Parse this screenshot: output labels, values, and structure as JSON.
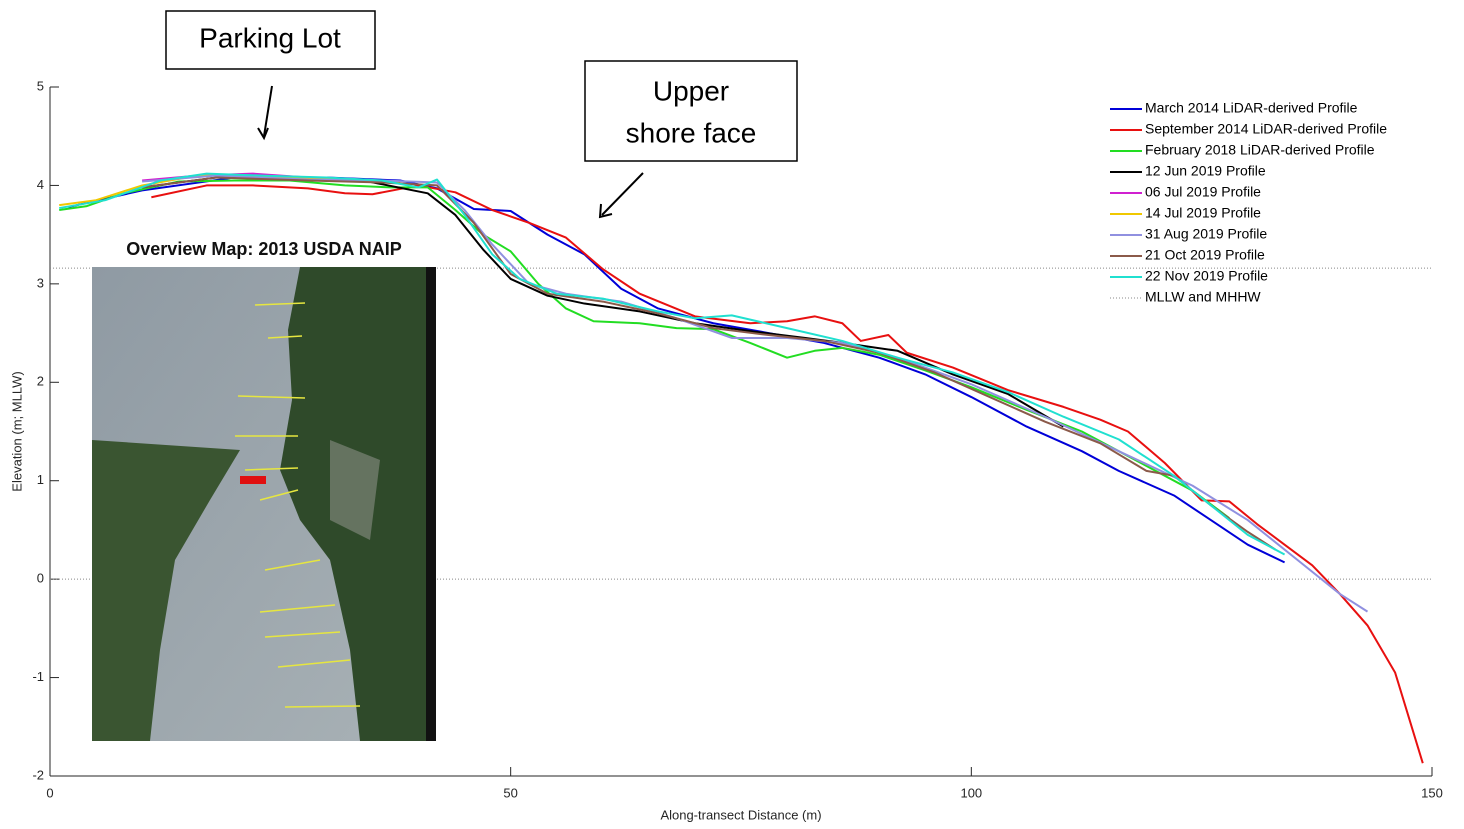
{
  "chart_data": {
    "type": "line",
    "xlabel": "Along-transect Distance (m)",
    "ylabel": "Elevation (m; MLLW)",
    "xlim": [
      0,
      150
    ],
    "ylim": [
      -2,
      5
    ],
    "xticks": [
      0,
      50,
      100,
      150
    ],
    "yticks": [
      -2,
      -1,
      0,
      1,
      2,
      3,
      4,
      5
    ],
    "legend": "upper right",
    "annotations": [
      {
        "lines": [
          "Parking Lot"
        ]
      },
      {
        "lines": [
          "Upper",
          "shore face"
        ]
      }
    ],
    "inset_title": "Overview Map:  2013 USDA NAIP",
    "series": [
      {
        "name": "March 2014 LiDAR-derived Profile",
        "color": "#0000d8",
        "x": [
          2,
          10,
          20,
          30,
          38,
          42,
          46,
          50,
          54,
          58,
          62,
          66,
          72,
          78,
          84,
          90,
          95,
          100,
          106,
          112,
          116,
          122,
          126,
          130,
          134
        ],
        "values": [
          3.78,
          3.95,
          4.08,
          4.08,
          4.05,
          3.97,
          3.76,
          3.74,
          3.5,
          3.3,
          2.95,
          2.75,
          2.6,
          2.5,
          2.4,
          2.25,
          2.08,
          1.85,
          1.55,
          1.3,
          1.1,
          0.85,
          0.6,
          0.35,
          0.17
        ]
      },
      {
        "name": "September 2014 LiDAR-derived Profile",
        "color": "#e81010",
        "x": [
          11,
          17,
          22,
          28,
          32,
          35,
          40,
          44,
          48,
          52,
          56,
          60,
          64,
          70,
          76,
          80,
          83,
          86,
          88,
          91,
          93,
          98,
          104,
          110,
          114,
          117,
          121,
          125,
          128,
          131,
          134,
          137,
          140,
          143,
          146,
          149
        ],
        "values": [
          3.88,
          4.0,
          4.0,
          3.97,
          3.92,
          3.91,
          4.0,
          3.93,
          3.75,
          3.62,
          3.47,
          3.15,
          2.9,
          2.67,
          2.6,
          2.62,
          2.67,
          2.6,
          2.42,
          2.48,
          2.3,
          2.15,
          1.92,
          1.75,
          1.62,
          1.5,
          1.18,
          0.8,
          0.79,
          0.56,
          0.35,
          0.14,
          -0.15,
          -0.47,
          -0.95,
          -1.87
        ]
      },
      {
        "name": "February 2018 LiDAR-derived Profile",
        "color": "#22dd22",
        "x": [
          1,
          4,
          8,
          14,
          20,
          26,
          32,
          37,
          41,
          44,
          47,
          50,
          53,
          56,
          59,
          64,
          68,
          72,
          76,
          80,
          83,
          86,
          90,
          95,
          100,
          106,
          112,
          118,
          124,
          128
        ],
        "values": [
          3.75,
          3.79,
          3.92,
          4.04,
          4.05,
          4.05,
          4.0,
          3.98,
          3.98,
          3.75,
          3.5,
          3.33,
          3.0,
          2.75,
          2.62,
          2.6,
          2.55,
          2.54,
          2.4,
          2.25,
          2.32,
          2.35,
          2.28,
          2.12,
          1.95,
          1.72,
          1.5,
          1.2,
          0.9,
          0.62
        ]
      },
      {
        "name": "12 Jun 2019 Profile",
        "color": "#000000",
        "x": [
          10,
          18,
          26,
          34,
          41,
          44,
          47,
          50,
          54,
          58,
          64,
          70,
          76,
          82,
          86,
          92,
          98,
          104,
          110
        ],
        "values": [
          3.98,
          4.08,
          4.08,
          4.05,
          3.92,
          3.7,
          3.35,
          3.05,
          2.88,
          2.8,
          2.72,
          2.6,
          2.52,
          2.45,
          2.4,
          2.32,
          2.08,
          1.88,
          1.55
        ]
      },
      {
        "name": "06 Jul 2019 Profile",
        "color": "#d020d0",
        "x": [
          10,
          16,
          22,
          28,
          34,
          38
        ],
        "values": [
          4.05,
          4.1,
          4.12,
          4.08,
          4.06,
          4.03
        ]
      },
      {
        "name": "14 Jul 2019 Profile",
        "color": "#f0c800",
        "x": [
          1,
          5,
          10,
          16,
          22,
          28,
          34,
          38
        ],
        "values": [
          3.8,
          3.85,
          4.0,
          4.1,
          4.1,
          4.07,
          4.05,
          4.03
        ]
      },
      {
        "name": "31 Aug 2019 Profile",
        "color": "#9090e0",
        "x": [
          10,
          18,
          28,
          36,
          42,
          45,
          48,
          52,
          56,
          62,
          68,
          74,
          80,
          86,
          92,
          100,
          108,
          116,
          124,
          130,
          136,
          140,
          143
        ],
        "values": [
          4.04,
          4.1,
          4.06,
          4.05,
          4.03,
          3.75,
          3.4,
          3.0,
          2.9,
          2.82,
          2.65,
          2.45,
          2.45,
          2.4,
          2.25,
          1.98,
          1.65,
          1.3,
          0.95,
          0.6,
          0.15,
          -0.15,
          -0.33
        ]
      },
      {
        "name": "21 Oct 2019 Profile",
        "color": "#8b5a4a",
        "x": [
          10,
          18,
          28,
          36,
          42,
          46,
          50,
          54,
          60,
          66,
          72,
          78,
          84,
          90,
          96,
          102,
          108,
          114,
          119,
          122,
          126,
          130,
          133
        ],
        "values": [
          3.98,
          4.08,
          4.05,
          4.03,
          4.0,
          3.62,
          3.1,
          2.9,
          2.82,
          2.7,
          2.55,
          2.48,
          2.42,
          2.3,
          2.1,
          1.85,
          1.6,
          1.38,
          1.1,
          1.05,
          0.75,
          0.48,
          0.3
        ]
      },
      {
        "name": "22 Nov 2019 Profile",
        "color": "#20e0d0",
        "x": [
          1,
          6,
          12,
          17,
          23,
          30,
          36,
          40,
          42,
          45,
          48,
          51,
          55,
          60,
          66,
          70,
          74,
          80,
          86,
          92,
          98,
          104,
          110,
          116,
          122,
          126,
          130,
          134
        ],
        "values": [
          3.77,
          3.85,
          4.05,
          4.12,
          4.1,
          4.08,
          4.05,
          3.98,
          4.06,
          3.7,
          3.3,
          3.05,
          2.9,
          2.85,
          2.72,
          2.65,
          2.68,
          2.55,
          2.42,
          2.25,
          2.1,
          1.9,
          1.65,
          1.42,
          1.05,
          0.75,
          0.45,
          0.25
        ]
      },
      {
        "name": "MLLW and MHHW",
        "color": "#888888",
        "dash": "1 2",
        "levels": [
          0,
          3.16
        ]
      }
    ]
  }
}
